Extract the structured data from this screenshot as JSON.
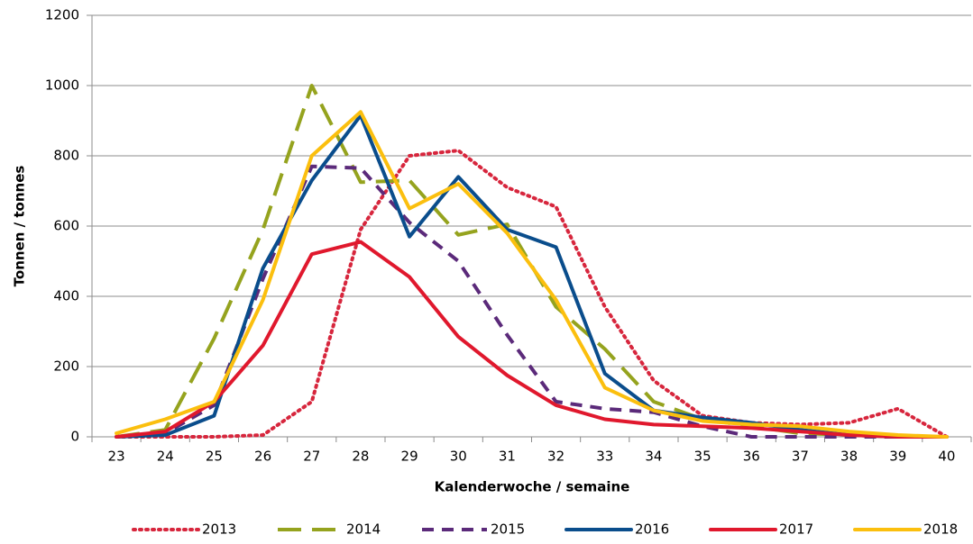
{
  "chart_data": {
    "type": "line",
    "y_label": "Tonnen / tonnes",
    "x_label": "Kalenderwoche / semaine",
    "categories": [
      "23",
      "24",
      "25",
      "26",
      "27",
      "28",
      "29",
      "30",
      "31",
      "32",
      "33",
      "34",
      "35",
      "36",
      "37",
      "38",
      "39",
      "40"
    ],
    "ylim": [
      0,
      1200
    ],
    "yticks": [
      0,
      200,
      400,
      600,
      800,
      1000,
      1200
    ],
    "grid": true,
    "legend": "bottom",
    "series": [
      {
        "name": "2013",
        "color": "#d7263d",
        "dash": "dotted",
        "values": [
          0,
          0,
          0,
          5,
          100,
          590,
          800,
          815,
          710,
          655,
          370,
          160,
          60,
          40,
          35,
          40,
          80,
          0
        ]
      },
      {
        "name": "2014",
        "color": "#95a31e",
        "dash": "long",
        "values": [
          0,
          20,
          280,
          590,
          1000,
          725,
          730,
          575,
          605,
          370,
          250,
          100,
          50,
          30,
          10,
          5,
          0,
          0
        ]
      },
      {
        "name": "2015",
        "color": "#5b2a7a",
        "dash": "short",
        "values": [
          0,
          10,
          90,
          450,
          770,
          765,
          610,
          500,
          290,
          100,
          80,
          70,
          30,
          0,
          0,
          0,
          0,
          0
        ]
      },
      {
        "name": "2016",
        "color": "#0a4d8c",
        "dash": "solid",
        "values": [
          0,
          5,
          60,
          480,
          730,
          915,
          570,
          740,
          590,
          540,
          180,
          75,
          55,
          40,
          20,
          5,
          0,
          0
        ]
      },
      {
        "name": "2017",
        "color": "#e0182d",
        "dash": "solid",
        "values": [
          0,
          15,
          100,
          260,
          520,
          555,
          455,
          285,
          175,
          90,
          50,
          35,
          30,
          25,
          15,
          5,
          0,
          0
        ]
      },
      {
        "name": "2018",
        "color": "#fbbf0e",
        "dash": "solid",
        "values": [
          10,
          50,
          100,
          390,
          800,
          925,
          650,
          720,
          580,
          390,
          140,
          75,
          45,
          35,
          30,
          15,
          5,
          0
        ]
      }
    ]
  }
}
